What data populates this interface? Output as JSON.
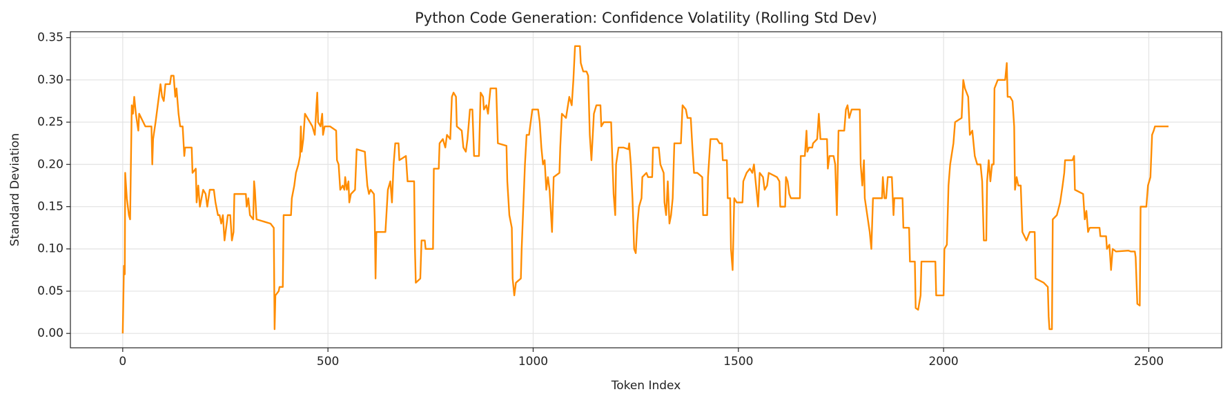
{
  "chart_data": {
    "type": "line",
    "title": "Python Code Generation: Confidence Volatility (Rolling Std Dev)",
    "xlabel": "Token Index",
    "ylabel": "Standard Deviation",
    "xlim": [
      -127.5,
      2677.5
    ],
    "ylim": [
      -0.017,
      0.357
    ],
    "xticks": [
      0,
      500,
      1000,
      1500,
      2000,
      2500
    ],
    "yticks": [
      {
        "value": 0,
        "label": "0.00"
      },
      0.05,
      {
        "value": 0.1,
        "label": "0.10"
      },
      0.15,
      {
        "value": 0.2,
        "label": "0.20"
      },
      0.25,
      {
        "value": 0.3,
        "label": "0.30"
      },
      0.35
    ],
    "grid": true,
    "series": [
      {
        "color": "#ff8c00",
        "x": [
          0,
          3,
          5,
          6,
          10,
          15,
          18,
          22,
          25,
          28,
          32,
          38,
          40,
          50,
          55,
          70,
          72,
          74,
          80,
          88,
          92,
          96,
          100,
          104,
          115,
          118,
          124,
          128,
          131,
          136,
          140,
          146,
          150,
          152,
          168,
          170,
          178,
          180,
          184,
          188,
          196,
          202,
          206,
          212,
          222,
          226,
          232,
          236,
          240,
          244,
          248,
          256,
          262,
          266,
          270,
          272,
          300,
          302,
          306,
          310,
          318,
          320,
          322,
          326,
          360,
          368,
          370,
          372,
          380,
          382,
          390,
          392,
          410,
          412,
          418,
          422,
          428,
          432,
          434,
          436,
          440,
          444,
          450,
          456,
          462,
          468,
          472,
          474,
          476,
          482,
          486,
          488,
          492,
          505,
          520,
          522,
          526,
          530,
          536,
          540,
          542,
          546,
          550,
          552,
          556,
          566,
          570,
          590,
          592,
          596,
          600,
          604,
          612,
          614,
          616,
          618,
          622,
          640,
          646,
          652,
          656,
          660,
          664,
          672,
          674,
          690,
          694,
          710,
          712,
          714,
          725,
          728,
          736,
          738,
          756,
          758,
          770,
          772,
          780,
          786,
          790,
          798,
          802,
          806,
          812,
          814,
          826,
          830,
          836,
          840,
          846,
          852,
          856,
          868,
          872,
          878,
          880,
          886,
          890,
          896,
          910,
          914,
          935,
          937,
          942,
          948,
          950,
          954,
          958,
          970,
          972,
          976,
          980,
          984,
          990,
          994,
          998,
          1012,
          1016,
          1020,
          1024,
          1028,
          1032,
          1036,
          1040,
          1046,
          1050,
          1064,
          1066,
          1070,
          1080,
          1088,
          1094,
          1098,
          1102,
          1114,
          1116,
          1122,
          1130,
          1134,
          1138,
          1142,
          1148,
          1154,
          1164,
          1166,
          1172,
          1190,
          1192,
          1196,
          1200,
          1202,
          1208,
          1220,
          1232,
          1234,
          1238,
          1242,
          1246,
          1250,
          1254,
          1258,
          1264,
          1266,
          1276,
          1280,
          1290,
          1292,
          1306,
          1310,
          1318,
          1320,
          1324,
          1328,
          1332,
          1336,
          1340,
          1344,
          1360,
          1364,
          1372,
          1376,
          1384,
          1388,
          1392,
          1400,
          1412,
          1414,
          1424,
          1426,
          1430,
          1432,
          1448,
          1454,
          1460,
          1462,
          1472,
          1474,
          1480,
          1482,
          1486,
          1490,
          1496,
          1510,
          1512,
          1520,
          1528,
          1534,
          1538,
          1548,
          1552,
          1560,
          1564,
          1570,
          1574,
          1594,
          1600,
          1602,
          1614,
          1616,
          1620,
          1624,
          1628,
          1650,
          1652,
          1662,
          1666,
          1668,
          1672,
          1680,
          1682,
          1692,
          1696,
          1700,
          1716,
          1718,
          1722,
          1732,
          1736,
          1740,
          1744,
          1758,
          1762,
          1766,
          1770,
          1776,
          1796,
          1798,
          1802,
          1806,
          1808,
          1814,
          1820,
          1824,
          1828,
          1850,
          1852,
          1856,
          1860,
          1864,
          1874,
          1878,
          1880,
          1900,
          1902,
          1916,
          1918,
          1930,
          1932,
          1938,
          1944,
          1946,
          1980,
          1982,
          2000,
          2002,
          2008,
          2012,
          2016,
          2024,
          2028,
          2044,
          2048,
          2052,
          2060,
          2064,
          2070,
          2076,
          2082,
          2090,
          2094,
          2098,
          2104,
          2106,
          2110,
          2114,
          2118,
          2122,
          2124,
          2132,
          2150,
          2154,
          2156,
          2162,
          2168,
          2172,
          2174,
          2178,
          2182,
          2188,
          2192,
          2202,
          2210,
          2222,
          2224,
          2244,
          2254,
          2256,
          2258,
          2264,
          2266,
          2276,
          2284,
          2290,
          2294,
          2296,
          2314,
          2318,
          2320,
          2340,
          2344,
          2348,
          2352,
          2356,
          2360,
          2380,
          2382,
          2396,
          2398,
          2404,
          2408,
          2412,
          2420,
          2450,
          2456,
          2466,
          2468,
          2472,
          2478,
          2480,
          2494,
          2498,
          2504,
          2508,
          2512,
          2515,
          2548
        ],
        "values": [
          0,
          0.08,
          0.07,
          0.19,
          0.16,
          0.14,
          0.135,
          0.27,
          0.26,
          0.28,
          0.26,
          0.24,
          0.26,
          0.25,
          0.245,
          0.245,
          0.2,
          0.23,
          0.25,
          0.28,
          0.295,
          0.28,
          0.275,
          0.295,
          0.295,
          0.305,
          0.305,
          0.28,
          0.29,
          0.26,
          0.245,
          0.245,
          0.21,
          0.22,
          0.22,
          0.19,
          0.195,
          0.155,
          0.175,
          0.15,
          0.17,
          0.165,
          0.15,
          0.17,
          0.17,
          0.155,
          0.14,
          0.14,
          0.13,
          0.14,
          0.11,
          0.14,
          0.14,
          0.11,
          0.12,
          0.165,
          0.165,
          0.15,
          0.16,
          0.14,
          0.135,
          0.18,
          0.17,
          0.135,
          0.13,
          0.125,
          0.005,
          0.045,
          0.05,
          0.055,
          0.055,
          0.14,
          0.14,
          0.16,
          0.175,
          0.19,
          0.2,
          0.21,
          0.245,
          0.215,
          0.23,
          0.26,
          0.255,
          0.25,
          0.245,
          0.235,
          0.27,
          0.285,
          0.25,
          0.245,
          0.26,
          0.235,
          0.245,
          0.245,
          0.24,
          0.205,
          0.2,
          0.17,
          0.175,
          0.17,
          0.185,
          0.17,
          0.18,
          0.155,
          0.165,
          0.17,
          0.218,
          0.215,
          0.2,
          0.175,
          0.165,
          0.17,
          0.165,
          0.135,
          0.065,
          0.12,
          0.12,
          0.12,
          0.17,
          0.18,
          0.155,
          0.2,
          0.225,
          0.225,
          0.205,
          0.21,
          0.18,
          0.18,
          0.1,
          0.06,
          0.065,
          0.11,
          0.11,
          0.1,
          0.1,
          0.195,
          0.195,
          0.225,
          0.23,
          0.22,
          0.235,
          0.23,
          0.28,
          0.285,
          0.28,
          0.245,
          0.24,
          0.22,
          0.215,
          0.23,
          0.265,
          0.265,
          0.21,
          0.21,
          0.285,
          0.28,
          0.265,
          0.27,
          0.26,
          0.29,
          0.29,
          0.225,
          0.222,
          0.18,
          0.14,
          0.125,
          0.065,
          0.045,
          0.06,
          0.065,
          0.1,
          0.15,
          0.2,
          0.235,
          0.235,
          0.25,
          0.265,
          0.265,
          0.25,
          0.22,
          0.2,
          0.205,
          0.17,
          0.185,
          0.17,
          0.12,
          0.185,
          0.19,
          0.22,
          0.26,
          0.255,
          0.28,
          0.27,
          0.3,
          0.34,
          0.34,
          0.32,
          0.31,
          0.31,
          0.305,
          0.235,
          0.205,
          0.26,
          0.27,
          0.27,
          0.245,
          0.25,
          0.25,
          0.22,
          0.165,
          0.14,
          0.2,
          0.22,
          0.22,
          0.218,
          0.225,
          0.2,
          0.16,
          0.1,
          0.095,
          0.13,
          0.15,
          0.16,
          0.185,
          0.19,
          0.185,
          0.185,
          0.22,
          0.22,
          0.2,
          0.19,
          0.155,
          0.14,
          0.18,
          0.13,
          0.14,
          0.16,
          0.225,
          0.225,
          0.27,
          0.265,
          0.255,
          0.255,
          0.22,
          0.19,
          0.19,
          0.185,
          0.14,
          0.14,
          0.185,
          0.215,
          0.23,
          0.23,
          0.225,
          0.225,
          0.205,
          0.205,
          0.16,
          0.16,
          0.1,
          0.075,
          0.16,
          0.155,
          0.155,
          0.18,
          0.19,
          0.195,
          0.19,
          0.2,
          0.15,
          0.19,
          0.185,
          0.17,
          0.175,
          0.19,
          0.185,
          0.18,
          0.15,
          0.15,
          0.185,
          0.18,
          0.165,
          0.16,
          0.16,
          0.21,
          0.21,
          0.24,
          0.215,
          0.22,
          0.22,
          0.225,
          0.23,
          0.26,
          0.23,
          0.23,
          0.195,
          0.21,
          0.21,
          0.2,
          0.14,
          0.24,
          0.24,
          0.265,
          0.27,
          0.255,
          0.265,
          0.265,
          0.2,
          0.175,
          0.205,
          0.16,
          0.14,
          0.12,
          0.1,
          0.16,
          0.16,
          0.185,
          0.16,
          0.16,
          0.185,
          0.185,
          0.14,
          0.16,
          0.16,
          0.125,
          0.125,
          0.085,
          0.085,
          0.03,
          0.028,
          0.045,
          0.085,
          0.085,
          0.045,
          0.045,
          0.1,
          0.105,
          0.175,
          0.2,
          0.225,
          0.25,
          0.255,
          0.3,
          0.29,
          0.28,
          0.235,
          0.24,
          0.21,
          0.2,
          0.2,
          0.18,
          0.11,
          0.11,
          0.18,
          0.205,
          0.18,
          0.2,
          0.2,
          0.29,
          0.3,
          0.3,
          0.32,
          0.28,
          0.28,
          0.275,
          0.245,
          0.17,
          0.185,
          0.175,
          0.175,
          0.12,
          0.11,
          0.12,
          0.12,
          0.065,
          0.06,
          0.055,
          0.02,
          0.005,
          0.005,
          0.135,
          0.14,
          0.155,
          0.175,
          0.19,
          0.205,
          0.205,
          0.21,
          0.17,
          0.165,
          0.135,
          0.145,
          0.12,
          0.125,
          0.125,
          0.125,
          0.115,
          0.115,
          0.1,
          0.105,
          0.075,
          0.1,
          0.097,
          0.098,
          0.097,
          0.097,
          0.09,
          0.035,
          0.033,
          0.15,
          0.15,
          0.175,
          0.185,
          0.235,
          0.24,
          0.245,
          0.245
        ]
      }
    ]
  }
}
